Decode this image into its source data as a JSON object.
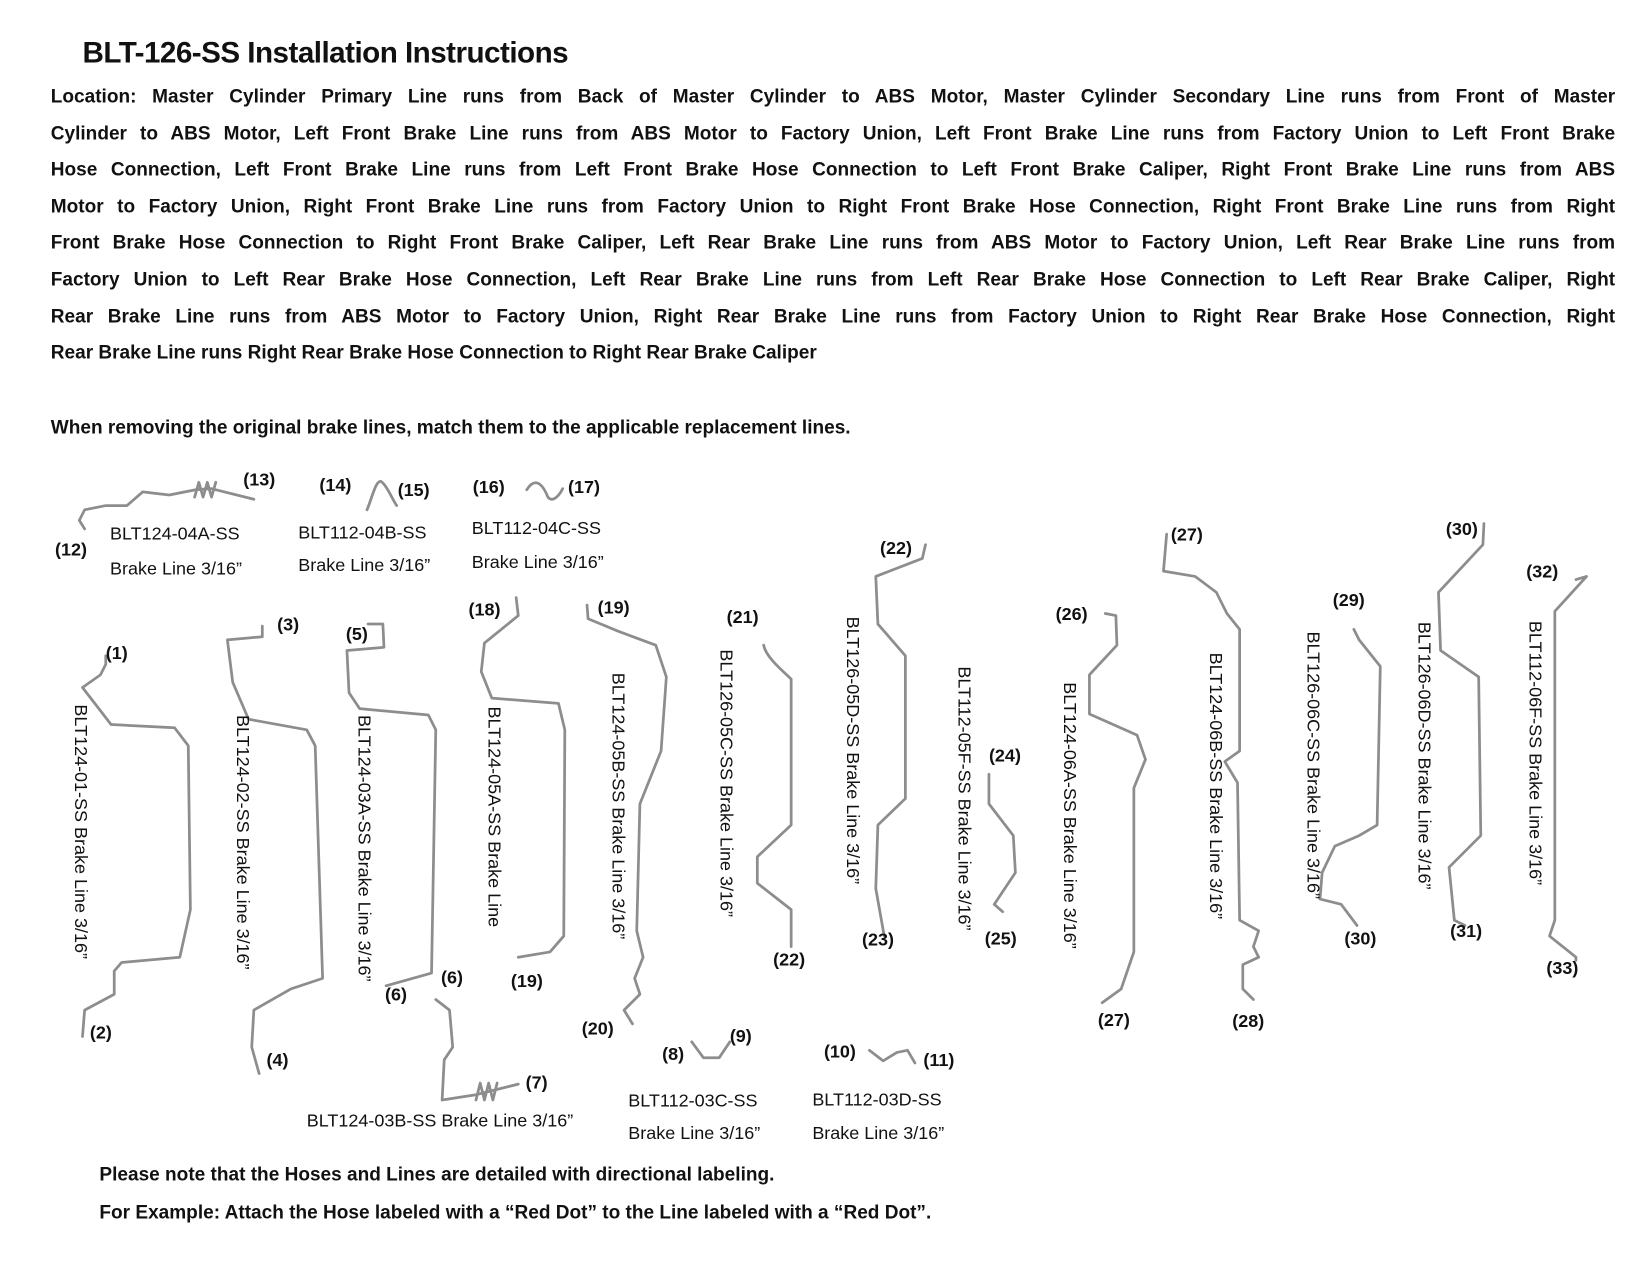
{
  "title": "BLT-126-SS Installation Instructions",
  "location_lines": [
    "Location: Master Cylinder Primary Line runs from Back of Master Cylinder to ABS Motor, Master Cylinder Secondary Line runs from Front of Master",
    "Cylinder to ABS Motor, Left Front Brake Line runs from ABS Motor to Factory Union, Left Front Brake Line runs from Factory Union to Left Front Brake",
    "Hose Connection, Left Front Brake Line runs from Left Front Brake Hose Connection to Left Front Brake Caliper, Right Front Brake Line runs from ABS",
    "Motor to Factory Union, Right Front Brake Line runs from Factory Union to Right Front Brake Hose Connection, Right Front Brake Line runs from Right",
    "Front Brake Hose Connection to Right Front Brake Caliper, Left Rear Brake Line runs from ABS Motor to Factory Union, Left Rear Brake Line runs from",
    "Factory Union to Left Rear Brake Hose Connection, Left Rear Brake Line runs from Left Rear Brake Hose Connection to Left Rear Brake Caliper, Right",
    "Rear Brake Line runs from ABS Motor to Factory Union, Right Rear Brake Line runs from Factory Union to Right Rear Brake Hose Connection, Right",
    "Rear Brake Line runs Right Rear Brake Hose Connection to Right Rear Brake Caliper"
  ],
  "intro": "When removing the original brake lines, match them to the applicable replacement lines.",
  "horizontal_labels": [
    {
      "part": "BLT124-04A-SS",
      "desc": "Brake Line 3/16”"
    },
    {
      "part": "BLT112-04B-SS",
      "desc": "Brake Line 3/16”"
    },
    {
      "part": "BLT112-04C-SS",
      "desc": "Brake Line 3/16”"
    },
    {
      "part": "BLT124-03B-SS Brake Line 3/16”"
    },
    {
      "part": "BLT112-03C-SS",
      "desc": "Brake Line 3/16”"
    },
    {
      "part": "BLT112-03D-SS",
      "desc": "Brake Line 3/16”"
    }
  ],
  "vertical_labels": [
    "BLT124-01-SS Brake Line 3/16”",
    "BLT124-02-SS Brake Line 3/16”",
    "BLT124-03A-SS Brake Line 3/16”",
    "BLT124-05A-SS Brake Line",
    "BLT124-05B-SS Brake Line 3/16”",
    "BLT126-05C-SS Brake Line 3/16”",
    "BLT126-05D-SS Brake Line 3/16”",
    "BLT112-05F-SS Brake Line 3/16”",
    "BLT124-06A-SS Brake Line 3/16”",
    "BLT124-06B-SS Brake Line 3/16”",
    "BLT126-06C-SS Brake Line 3/16”",
    "BLT126-06D-SS Brake Line 3/16”",
    "BLT112-06F-SS Brake Line 3/16”"
  ],
  "connection_numbers": [
    "(1)",
    "(2)",
    "(3)",
    "(4)",
    "(5)",
    "(6)",
    "(6)",
    "(7)",
    "(8)",
    "(9)",
    "(10)",
    "(11)",
    "(12)",
    "(13)",
    "(14)",
    "(15)",
    "(16)",
    "(17)",
    "(18)",
    "(19)",
    "(19)",
    "(20)",
    "(21)",
    "(22)",
    "(22)",
    "(23)",
    "(24)",
    "(25)",
    "(26)",
    "(27)",
    "(27)",
    "(28)",
    "(29)",
    "(30)",
    "(30)",
    "(31)",
    "(32)",
    "(33)"
  ],
  "notes": [
    "Please note that the Hoses and Lines are detailed with directional labeling.",
    "For Example: Attach the Hose labeled with a “Red Dot” to the Line labeled with a “Red Dot”."
  ],
  "colors": {
    "text": "#111111",
    "brake_line": "#8d8d8d"
  }
}
